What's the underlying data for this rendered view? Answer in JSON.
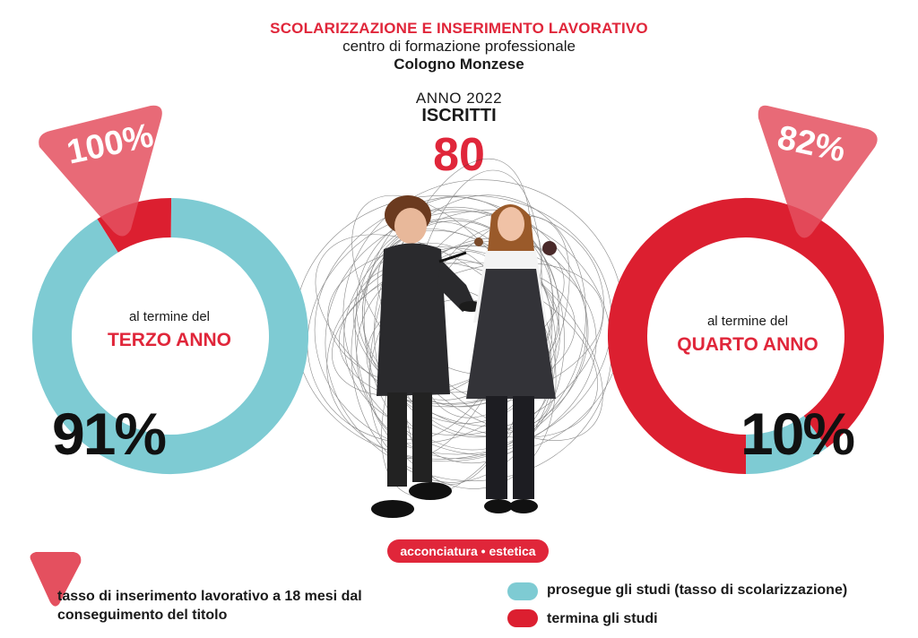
{
  "header": {
    "line1": "SCOLARIZZAZIONE E INSERIMENTO LAVORATIVO",
    "line2": "centro di formazione professionale",
    "line3": "Cologno Monzese",
    "year": "ANNO 2022",
    "enrolled_label": "ISCRITTI",
    "enrolled_value": "80"
  },
  "colors": {
    "continue": "#7ecbd3",
    "stop": "#dc1f30",
    "badge": "#e4505f"
  },
  "chart_data": [
    {
      "type": "pie",
      "label_prefix": "al termine del",
      "label_year": "TERZO ANNO",
      "series": [
        {
          "name": "prosegue gli studi (tasso di scolarizzazione)",
          "value": 91
        },
        {
          "name": "termina gli studi",
          "value": 9
        }
      ],
      "big_label": "91%",
      "badge_label": "100%",
      "badge_value": 100
    },
    {
      "type": "pie",
      "label_prefix": "al termine del",
      "label_year": "QUARTO ANNO",
      "series": [
        {
          "name": "prosegue gli studi (tasso di scolarizzazione)",
          "value": 10
        },
        {
          "name": "termina gli studi",
          "value": 90
        }
      ],
      "big_label": "10%",
      "badge_label": "82%",
      "badge_value": 82
    }
  ],
  "pill": "acconciatura • estetica",
  "legend": {
    "badge_text": "tasso di inserimento lavorativo a 18 mesi dal conseguimento del titolo",
    "continue_label": "prosegue gli studi (tasso di scolarizzazione)",
    "stop_label": "termina gli studi"
  }
}
